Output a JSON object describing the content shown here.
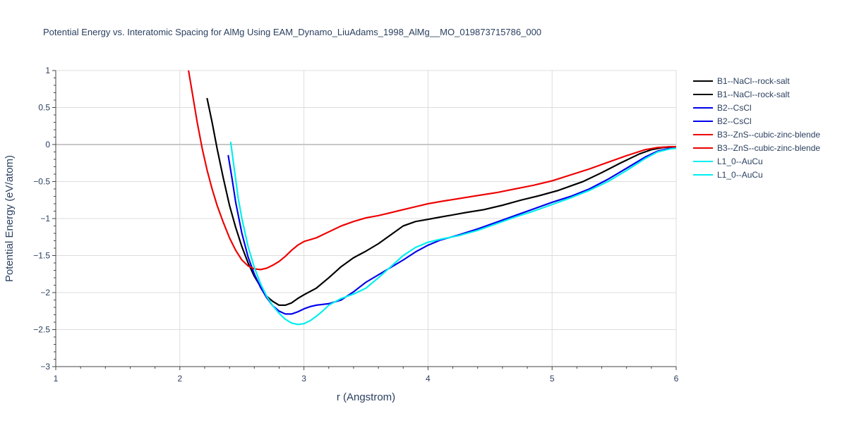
{
  "chart_data": {
    "type": "line",
    "title": "Potential Energy vs. Interatomic Spacing for AlMg Using EAM_Dynamo_LiuAdams_1998_AlMg__MO_019873715786_000",
    "xlabel": "r (Angstrom)",
    "ylabel": "Potential Energy (eV/atom)",
    "xlim": [
      1,
      6
    ],
    "ylim": [
      -3,
      1
    ],
    "xticks": [
      "1",
      "2",
      "3",
      "4",
      "5",
      "6"
    ],
    "yticks": [
      "1",
      "0.5",
      "0",
      "−0.5",
      "−1",
      "−1.5",
      "−2",
      "−2.5",
      "−3"
    ],
    "grid": true,
    "legend_position": "right",
    "series": [
      {
        "name": "B1--NaCl--rock-salt",
        "color": "#000000",
        "x": [
          2.22,
          2.26,
          2.3,
          2.35,
          2.4,
          2.45,
          2.5,
          2.55,
          2.6,
          2.65,
          2.7,
          2.75,
          2.8,
          2.85,
          2.9,
          2.95,
          3.0,
          3.1,
          3.2,
          3.3,
          3.4,
          3.5,
          3.6,
          3.7,
          3.8,
          3.9,
          4.0,
          4.1,
          4.2,
          4.3,
          4.45,
          4.6,
          4.75,
          4.9,
          5.05,
          5.25,
          5.4,
          5.55,
          5.7,
          5.8,
          5.9,
          6.0
        ],
        "y": [
          0.62,
          0.3,
          -0.05,
          -0.45,
          -0.82,
          -1.12,
          -1.38,
          -1.6,
          -1.78,
          -1.92,
          -2.05,
          -2.12,
          -2.17,
          -2.17,
          -2.14,
          -2.08,
          -2.03,
          -1.94,
          -1.8,
          -1.65,
          -1.53,
          -1.44,
          -1.34,
          -1.22,
          -1.1,
          -1.04,
          -1.01,
          -0.98,
          -0.95,
          -0.92,
          -0.88,
          -0.82,
          -0.75,
          -0.69,
          -0.62,
          -0.5,
          -0.38,
          -0.25,
          -0.13,
          -0.07,
          -0.04,
          -0.03
        ]
      },
      {
        "name": "B1--NaCl--rock-salt",
        "color": "#000000",
        "x": [
          2.22,
          2.26,
          2.3,
          2.35,
          2.4,
          2.45,
          2.5,
          2.55,
          2.6,
          2.65,
          2.7,
          2.75,
          2.8,
          2.85,
          2.9,
          2.95,
          3.0,
          3.1,
          3.2,
          3.3,
          3.4,
          3.5,
          3.6,
          3.7,
          3.8,
          3.9,
          4.0,
          4.1,
          4.2,
          4.3,
          4.45,
          4.6,
          4.75,
          4.9,
          5.05,
          5.25,
          5.4,
          5.55,
          5.7,
          5.8,
          5.9,
          6.0
        ],
        "y": [
          0.62,
          0.3,
          -0.05,
          -0.45,
          -0.82,
          -1.12,
          -1.38,
          -1.6,
          -1.78,
          -1.92,
          -2.05,
          -2.12,
          -2.17,
          -2.17,
          -2.14,
          -2.08,
          -2.03,
          -1.94,
          -1.8,
          -1.65,
          -1.53,
          -1.44,
          -1.34,
          -1.22,
          -1.1,
          -1.04,
          -1.01,
          -0.98,
          -0.95,
          -0.92,
          -0.88,
          -0.82,
          -0.75,
          -0.69,
          -0.62,
          -0.5,
          -0.38,
          -0.25,
          -0.13,
          -0.07,
          -0.04,
          -0.03
        ]
      },
      {
        "name": "B2--CsCl",
        "color": "#0000ee",
        "x": [
          2.39,
          2.42,
          2.45,
          2.5,
          2.55,
          2.6,
          2.65,
          2.7,
          2.75,
          2.8,
          2.85,
          2.9,
          2.95,
          3.0,
          3.05,
          3.1,
          3.2,
          3.3,
          3.4,
          3.5,
          3.6,
          3.7,
          3.8,
          3.9,
          4.0,
          4.1,
          4.25,
          4.4,
          4.55,
          4.7,
          4.85,
          5.0,
          5.15,
          5.3,
          5.45,
          5.6,
          5.75,
          5.85,
          5.95,
          6.0
        ],
        "y": [
          -0.15,
          -0.45,
          -0.78,
          -1.2,
          -1.52,
          -1.75,
          -1.93,
          -2.07,
          -2.18,
          -2.25,
          -2.29,
          -2.29,
          -2.26,
          -2.22,
          -2.19,
          -2.17,
          -2.15,
          -2.1,
          -1.99,
          -1.86,
          -1.76,
          -1.66,
          -1.56,
          -1.45,
          -1.36,
          -1.29,
          -1.22,
          -1.14,
          -1.05,
          -0.96,
          -0.87,
          -0.78,
          -0.7,
          -0.6,
          -0.47,
          -0.32,
          -0.17,
          -0.09,
          -0.05,
          -0.04
        ]
      },
      {
        "name": "B2--CsCl",
        "color": "#0000ee",
        "x": [
          2.39,
          2.42,
          2.45,
          2.5,
          2.55,
          2.6,
          2.65,
          2.7,
          2.75,
          2.8,
          2.85,
          2.9,
          2.95,
          3.0,
          3.05,
          3.1,
          3.2,
          3.3,
          3.4,
          3.5,
          3.6,
          3.7,
          3.8,
          3.9,
          4.0,
          4.1,
          4.25,
          4.4,
          4.55,
          4.7,
          4.85,
          5.0,
          5.15,
          5.3,
          5.45,
          5.6,
          5.75,
          5.85,
          5.95,
          6.0
        ],
        "y": [
          -0.15,
          -0.45,
          -0.78,
          -1.2,
          -1.52,
          -1.75,
          -1.93,
          -2.07,
          -2.18,
          -2.25,
          -2.29,
          -2.29,
          -2.26,
          -2.22,
          -2.19,
          -2.17,
          -2.15,
          -2.1,
          -1.99,
          -1.86,
          -1.76,
          -1.66,
          -1.56,
          -1.45,
          -1.36,
          -1.29,
          -1.22,
          -1.14,
          -1.05,
          -0.96,
          -0.87,
          -0.78,
          -0.7,
          -0.6,
          -0.47,
          -0.32,
          -0.17,
          -0.09,
          -0.05,
          -0.04
        ]
      },
      {
        "name": "B3--ZnS--cubic-zinc-blende",
        "color": "#ee0000",
        "x": [
          2.07,
          2.1,
          2.14,
          2.18,
          2.22,
          2.26,
          2.3,
          2.35,
          2.4,
          2.45,
          2.5,
          2.55,
          2.6,
          2.65,
          2.7,
          2.75,
          2.8,
          2.85,
          2.9,
          2.95,
          3.0,
          3.1,
          3.2,
          3.3,
          3.4,
          3.5,
          3.6,
          3.7,
          3.8,
          3.9,
          4.0,
          4.1,
          4.25,
          4.4,
          4.55,
          4.7,
          4.85,
          5.0,
          5.15,
          5.3,
          5.45,
          5.6,
          5.75,
          5.85,
          5.95,
          6.0
        ],
        "y": [
          1.0,
          0.7,
          0.3,
          -0.05,
          -0.35,
          -0.6,
          -0.82,
          -1.05,
          -1.26,
          -1.43,
          -1.56,
          -1.64,
          -1.68,
          -1.69,
          -1.67,
          -1.63,
          -1.58,
          -1.51,
          -1.43,
          -1.36,
          -1.31,
          -1.26,
          -1.18,
          -1.1,
          -1.04,
          -0.99,
          -0.96,
          -0.92,
          -0.88,
          -0.84,
          -0.8,
          -0.77,
          -0.73,
          -0.69,
          -0.65,
          -0.6,
          -0.55,
          -0.49,
          -0.41,
          -0.33,
          -0.24,
          -0.15,
          -0.07,
          -0.04,
          -0.03,
          -0.03
        ]
      },
      {
        "name": "B3--ZnS--cubic-zinc-blende",
        "color": "#ee0000",
        "x": [
          2.07,
          2.1,
          2.14,
          2.18,
          2.22,
          2.26,
          2.3,
          2.35,
          2.4,
          2.45,
          2.5,
          2.55,
          2.6,
          2.65,
          2.7,
          2.75,
          2.8,
          2.85,
          2.9,
          2.95,
          3.0,
          3.1,
          3.2,
          3.3,
          3.4,
          3.5,
          3.6,
          3.7,
          3.8,
          3.9,
          4.0,
          4.1,
          4.25,
          4.4,
          4.55,
          4.7,
          4.85,
          5.0,
          5.15,
          5.3,
          5.45,
          5.6,
          5.75,
          5.85,
          5.95,
          6.0
        ],
        "y": [
          1.0,
          0.7,
          0.3,
          -0.05,
          -0.35,
          -0.6,
          -0.82,
          -1.05,
          -1.26,
          -1.43,
          -1.56,
          -1.64,
          -1.68,
          -1.69,
          -1.67,
          -1.63,
          -1.58,
          -1.51,
          -1.43,
          -1.36,
          -1.31,
          -1.26,
          -1.18,
          -1.1,
          -1.04,
          -0.99,
          -0.96,
          -0.92,
          -0.88,
          -0.84,
          -0.8,
          -0.77,
          -0.73,
          -0.69,
          -0.65,
          -0.6,
          -0.55,
          -0.49,
          -0.41,
          -0.33,
          -0.24,
          -0.15,
          -0.07,
          -0.04,
          -0.03,
          -0.03
        ]
      },
      {
        "name": "L1_0--AuCu",
        "color": "#00eeee",
        "x": [
          2.41,
          2.44,
          2.47,
          2.5,
          2.55,
          2.6,
          2.65,
          2.7,
          2.75,
          2.8,
          2.85,
          2.9,
          2.95,
          3.0,
          3.05,
          3.1,
          3.15,
          3.2,
          3.3,
          3.4,
          3.5,
          3.6,
          3.7,
          3.8,
          3.9,
          4.0,
          4.1,
          4.25,
          4.4,
          4.55,
          4.7,
          4.85,
          5.0,
          5.15,
          5.3,
          5.45,
          5.6,
          5.75,
          5.85,
          5.95,
          6.0
        ],
        "y": [
          0.03,
          -0.35,
          -0.72,
          -1.0,
          -1.38,
          -1.66,
          -1.88,
          -2.05,
          -2.18,
          -2.28,
          -2.36,
          -2.41,
          -2.43,
          -2.42,
          -2.38,
          -2.32,
          -2.25,
          -2.17,
          -2.08,
          -2.02,
          -1.94,
          -1.8,
          -1.65,
          -1.5,
          -1.39,
          -1.32,
          -1.28,
          -1.23,
          -1.16,
          -1.07,
          -0.98,
          -0.9,
          -0.81,
          -0.72,
          -0.62,
          -0.5,
          -0.35,
          -0.19,
          -0.1,
          -0.06,
          -0.05
        ]
      },
      {
        "name": "L1_0--AuCu",
        "color": "#00eeee",
        "x": [
          2.41,
          2.44,
          2.47,
          2.5,
          2.55,
          2.6,
          2.65,
          2.7,
          2.75,
          2.8,
          2.85,
          2.9,
          2.95,
          3.0,
          3.05,
          3.1,
          3.15,
          3.2,
          3.3,
          3.4,
          3.5,
          3.6,
          3.7,
          3.8,
          3.9,
          4.0,
          4.1,
          4.25,
          4.4,
          4.55,
          4.7,
          4.85,
          5.0,
          5.15,
          5.3,
          5.45,
          5.6,
          5.75,
          5.85,
          5.95,
          6.0
        ],
        "y": [
          0.03,
          -0.35,
          -0.72,
          -1.0,
          -1.38,
          -1.66,
          -1.88,
          -2.05,
          -2.18,
          -2.28,
          -2.36,
          -2.41,
          -2.43,
          -2.42,
          -2.38,
          -2.32,
          -2.25,
          -2.17,
          -2.08,
          -2.02,
          -1.94,
          -1.8,
          -1.65,
          -1.5,
          -1.39,
          -1.32,
          -1.28,
          -1.23,
          -1.16,
          -1.07,
          -0.98,
          -0.9,
          -0.81,
          -0.72,
          -0.62,
          -0.5,
          -0.35,
          -0.19,
          -0.1,
          -0.06,
          -0.05
        ]
      }
    ]
  }
}
